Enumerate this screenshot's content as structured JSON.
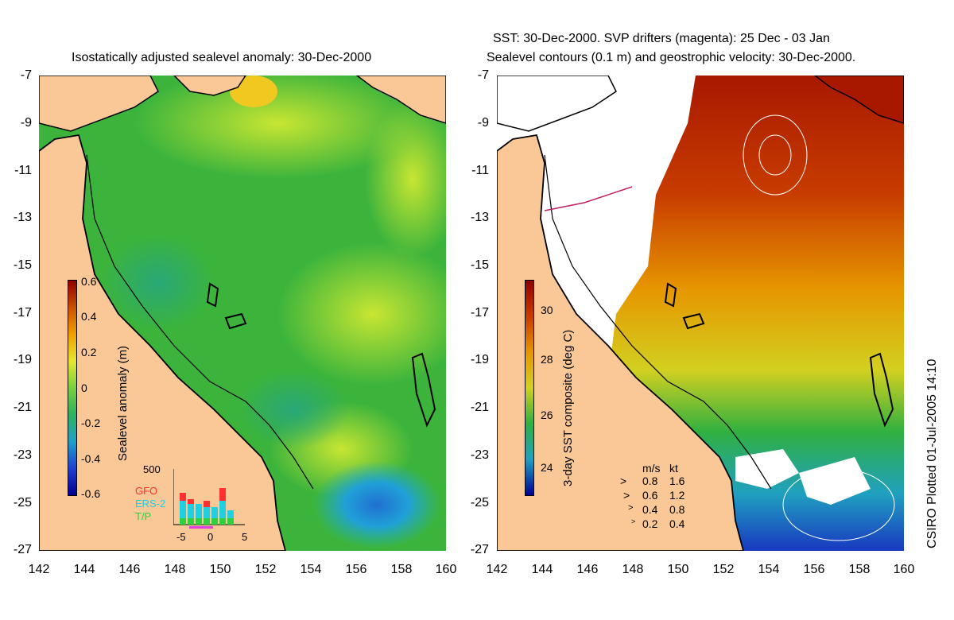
{
  "left": {
    "title": "Isostatically adjusted sealevel anomaly: 30-Dec-2000",
    "colorbar_label": "Sealevel anomaly (m)",
    "colorbar_ticks": [
      "0.6",
      "0.4",
      "0.2",
      "0",
      "-0.2",
      "-0.4",
      "-0.6"
    ],
    "inset": {
      "ymax": "500",
      "xticks": [
        "-5",
        "0",
        "5"
      ],
      "satellites": [
        {
          "name": "GFO",
          "color": "#ff3030"
        },
        {
          "name": "ERS-2",
          "color": "#20d0e0"
        },
        {
          "name": "T/P",
          "color": "#30d040"
        }
      ]
    }
  },
  "right": {
    "title_line1": "SST: 30-Dec-2000. SVP drifters (magenta): 25 Dec - 03 Jan",
    "title_line2": "Sealevel contours (0.1 m) and geostrophic velocity: 30-Dec-2000.",
    "colorbar_label": "3-day SST composite (deg C)",
    "colorbar_ticks": [
      "30",
      "28",
      "26",
      "24"
    ],
    "speed_legend": {
      "header_ms": "m/s",
      "header_kt": "kt",
      "rows": [
        {
          "ms": "0.8",
          "kt": "1.6"
        },
        {
          "ms": "0.6",
          "kt": "1.2"
        },
        {
          "ms": "0.4",
          "kt": "0.8"
        },
        {
          "ms": "0.2",
          "kt": "0.4"
        }
      ]
    }
  },
  "axes": {
    "y_ticks": [
      "-7",
      "-9",
      "-11",
      "-13",
      "-15",
      "-17",
      "-19",
      "-21",
      "-23",
      "-25",
      "-27"
    ],
    "x_ticks": [
      "142",
      "144",
      "146",
      "148",
      "150",
      "152",
      "154",
      "156",
      "158",
      "160"
    ]
  },
  "credit": "CSIRO Plotted 01-Jul-2005 14:10",
  "colors": {
    "land": "#f9c896",
    "ocean_green": "#3cb43c",
    "ocean_yellow": "#c8e632",
    "sst_red": "#b42000",
    "sst_orange": "#e68c00"
  }
}
